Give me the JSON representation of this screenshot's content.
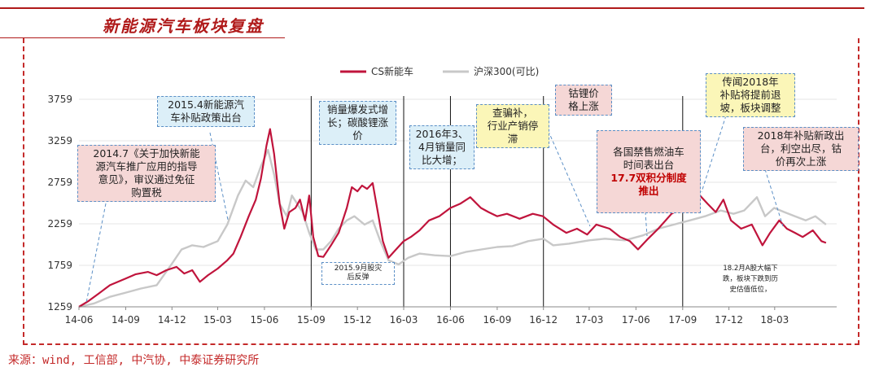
{
  "title": "新能源汽车板块复盘",
  "source": "来源：wind, 工信部, 中汽协, 中泰证券研究所",
  "colors": {
    "cs": "#c0143c",
    "hs300": "#c8c8c8",
    "accent": "#b01a1a"
  },
  "chart_data": {
    "type": "line",
    "x_ticks": [
      "14-06",
      "14-09",
      "14-12",
      "15-03",
      "15-06",
      "15-09",
      "15-12",
      "16-03",
      "16-06",
      "16-09",
      "16-12",
      "17-03",
      "17-06",
      "17-09",
      "17-12",
      "18-03"
    ],
    "y_ticks": [
      "1259",
      "1759",
      "2259",
      "2759",
      "3259",
      "3759"
    ],
    "ylim": [
      1259,
      3759
    ],
    "xlim": [
      "2014-06-01",
      "2018-07-01"
    ],
    "legend_position": "top-center",
    "series": [
      {
        "name": "CS新能车",
        "color": "#c0143c",
        "points": [
          [
            "2014-06-01",
            1259
          ],
          [
            "2014-06-20",
            1330
          ],
          [
            "2014-07-10",
            1420
          ],
          [
            "2014-08-01",
            1520
          ],
          [
            "2014-09-01",
            1600
          ],
          [
            "2014-09-20",
            1650
          ],
          [
            "2014-10-15",
            1680
          ],
          [
            "2014-11-01",
            1640
          ],
          [
            "2014-11-20",
            1700
          ],
          [
            "2014-12-10",
            1740
          ],
          [
            "2014-12-25",
            1660
          ],
          [
            "2015-01-10",
            1700
          ],
          [
            "2015-01-25",
            1560
          ],
          [
            "2015-02-10",
            1640
          ],
          [
            "2015-03-01",
            1720
          ],
          [
            "2015-03-20",
            1820
          ],
          [
            "2015-04-01",
            1900
          ],
          [
            "2015-04-15",
            2100
          ],
          [
            "2015-05-01",
            2350
          ],
          [
            "2015-05-15",
            2550
          ],
          [
            "2015-05-25",
            2800
          ],
          [
            "2015-06-05",
            3200
          ],
          [
            "2015-06-12",
            3400
          ],
          [
            "2015-06-20",
            3100
          ],
          [
            "2015-07-01",
            2500
          ],
          [
            "2015-07-10",
            2200
          ],
          [
            "2015-07-20",
            2400
          ],
          [
            "2015-08-01",
            2450
          ],
          [
            "2015-08-10",
            2550
          ],
          [
            "2015-08-20",
            2300
          ],
          [
            "2015-08-28",
            2600
          ],
          [
            "2015-09-05",
            2100
          ],
          [
            "2015-09-15",
            1870
          ],
          [
            "2015-09-25",
            1860
          ],
          [
            "2015-10-10",
            2000
          ],
          [
            "2015-10-25",
            2150
          ],
          [
            "2015-11-10",
            2450
          ],
          [
            "2015-11-20",
            2700
          ],
          [
            "2015-12-01",
            2650
          ],
          [
            "2015-12-10",
            2720
          ],
          [
            "2015-12-20",
            2680
          ],
          [
            "2015-12-31",
            2750
          ],
          [
            "2016-01-10",
            2400
          ],
          [
            "2016-01-20",
            2050
          ],
          [
            "2016-01-31",
            1850
          ],
          [
            "2016-02-15",
            1950
          ],
          [
            "2016-03-01",
            2050
          ],
          [
            "2016-03-15",
            2100
          ],
          [
            "2016-04-01",
            2180
          ],
          [
            "2016-04-20",
            2300
          ],
          [
            "2016-05-10",
            2350
          ],
          [
            "2016-06-01",
            2450
          ],
          [
            "2016-06-20",
            2500
          ],
          [
            "2016-07-10",
            2580
          ],
          [
            "2016-07-31",
            2450
          ],
          [
            "2016-08-15",
            2400
          ],
          [
            "2016-09-01",
            2350
          ],
          [
            "2016-09-20",
            2380
          ],
          [
            "2016-10-15",
            2320
          ],
          [
            "2016-11-10",
            2380
          ],
          [
            "2016-11-30",
            2350
          ],
          [
            "2016-12-20",
            2250
          ],
          [
            "2017-01-15",
            2150
          ],
          [
            "2017-02-05",
            2200
          ],
          [
            "2017-02-25",
            2130
          ],
          [
            "2017-03-15",
            2250
          ],
          [
            "2017-04-10",
            2200
          ],
          [
            "2017-05-01",
            2100
          ],
          [
            "2017-05-20",
            2050
          ],
          [
            "2017-06-05",
            1950
          ],
          [
            "2017-06-25",
            2080
          ],
          [
            "2017-07-15",
            2200
          ],
          [
            "2017-08-10",
            2380
          ],
          [
            "2017-08-31",
            2450
          ],
          [
            "2017-09-10",
            2520
          ],
          [
            "2017-09-20",
            2650
          ],
          [
            "2017-10-05",
            2600
          ],
          [
            "2017-10-20",
            2500
          ],
          [
            "2017-11-05",
            2400
          ],
          [
            "2017-11-20",
            2550
          ],
          [
            "2017-12-05",
            2300
          ],
          [
            "2017-12-25",
            2200
          ],
          [
            "2018-01-15",
            2250
          ],
          [
            "2018-02-05",
            2000
          ],
          [
            "2018-02-20",
            2150
          ],
          [
            "2018-03-10",
            2300
          ],
          [
            "2018-03-25",
            2200
          ],
          [
            "2018-04-10",
            2150
          ],
          [
            "2018-04-25",
            2100
          ],
          [
            "2018-05-15",
            2180
          ],
          [
            "2018-06-01",
            2050
          ],
          [
            "2018-06-10",
            2030
          ]
        ]
      },
      {
        "name": "沪深300(可比)",
        "color": "#c8c8c8",
        "points": [
          [
            "2014-06-01",
            1259
          ],
          [
            "2014-07-01",
            1300
          ],
          [
            "2014-08-01",
            1380
          ],
          [
            "2014-09-01",
            1430
          ],
          [
            "2014-10-01",
            1480
          ],
          [
            "2014-11-01",
            1520
          ],
          [
            "2014-12-01",
            1780
          ],
          [
            "2014-12-20",
            1950
          ],
          [
            "2015-01-10",
            2000
          ],
          [
            "2015-02-01",
            1980
          ],
          [
            "2015-03-01",
            2050
          ],
          [
            "2015-03-20",
            2250
          ],
          [
            "2015-04-10",
            2600
          ],
          [
            "2015-04-25",
            2780
          ],
          [
            "2015-05-10",
            2700
          ],
          [
            "2015-05-25",
            2950
          ],
          [
            "2015-06-08",
            3150
          ],
          [
            "2015-06-20",
            2850
          ],
          [
            "2015-07-01",
            2500
          ],
          [
            "2015-07-15",
            2350
          ],
          [
            "2015-07-25",
            2600
          ],
          [
            "2015-08-15",
            2400
          ],
          [
            "2015-08-28",
            2150
          ],
          [
            "2015-09-10",
            1950
          ],
          [
            "2015-09-25",
            1950
          ],
          [
            "2015-10-10",
            2050
          ],
          [
            "2015-10-25",
            2200
          ],
          [
            "2015-11-10",
            2300
          ],
          [
            "2015-11-25",
            2350
          ],
          [
            "2015-12-15",
            2250
          ],
          [
            "2015-12-31",
            2300
          ],
          [
            "2016-01-15",
            2050
          ],
          [
            "2016-01-31",
            1820
          ],
          [
            "2016-02-20",
            1770
          ],
          [
            "2016-03-10",
            1850
          ],
          [
            "2016-04-01",
            1900
          ],
          [
            "2016-05-01",
            1880
          ],
          [
            "2016-06-01",
            1870
          ],
          [
            "2016-07-01",
            1920
          ],
          [
            "2016-08-01",
            1950
          ],
          [
            "2016-09-01",
            1980
          ],
          [
            "2016-10-01",
            1990
          ],
          [
            "2016-11-01",
            2050
          ],
          [
            "2016-12-01",
            2080
          ],
          [
            "2016-12-20",
            2000
          ],
          [
            "2017-01-20",
            2020
          ],
          [
            "2017-03-01",
            2060
          ],
          [
            "2017-04-01",
            2080
          ],
          [
            "2017-05-10",
            2060
          ],
          [
            "2017-06-15",
            2120
          ],
          [
            "2017-07-15",
            2200
          ],
          [
            "2017-08-15",
            2250
          ],
          [
            "2017-09-15",
            2300
          ],
          [
            "2017-10-15",
            2350
          ],
          [
            "2017-11-15",
            2420
          ],
          [
            "2017-12-10",
            2380
          ],
          [
            "2017-12-31",
            2420
          ],
          [
            "2018-01-25",
            2580
          ],
          [
            "2018-02-10",
            2350
          ],
          [
            "2018-02-28",
            2450
          ],
          [
            "2018-03-20",
            2400
          ],
          [
            "2018-04-10",
            2350
          ],
          [
            "2018-05-01",
            2300
          ],
          [
            "2018-05-20",
            2350
          ],
          [
            "2018-06-10",
            2250
          ]
        ]
      }
    ],
    "vlines": [
      "2015-09-01",
      "2016-03-01",
      "2016-06-01",
      "2016-12-01",
      "2017-09-01"
    ]
  },
  "annotations": {
    "a1": "2014.7《关于加快新能\n源汽车推广应用的指导\n意见》，审议通过免征\n购置税",
    "a2": "2015.4新能源汽\n车补贴政策出台",
    "a3": "销量爆发式增\n长；碳酸锂涨\n价",
    "a4": "2015.9月股灾\n后反弹",
    "a5": "2016年3、\n4月销量同\n比大增；",
    "a6": "查骗补，\n行业产销停\n滞",
    "a7": "钴锂价\n格上涨",
    "a8": "各国禁售燃油车\n时间表出台",
    "a8_em": "17.7双积分制度\n推出",
    "a9": "传闻2018年\n补贴将提前退\n坡，板块调整",
    "a10": "2018年补贴新政出\n台，利空出尽，钴\n价再次上涨",
    "a11": "18.2月A股大幅下\n跌，板块下跌到历\n史估值低位，"
  }
}
